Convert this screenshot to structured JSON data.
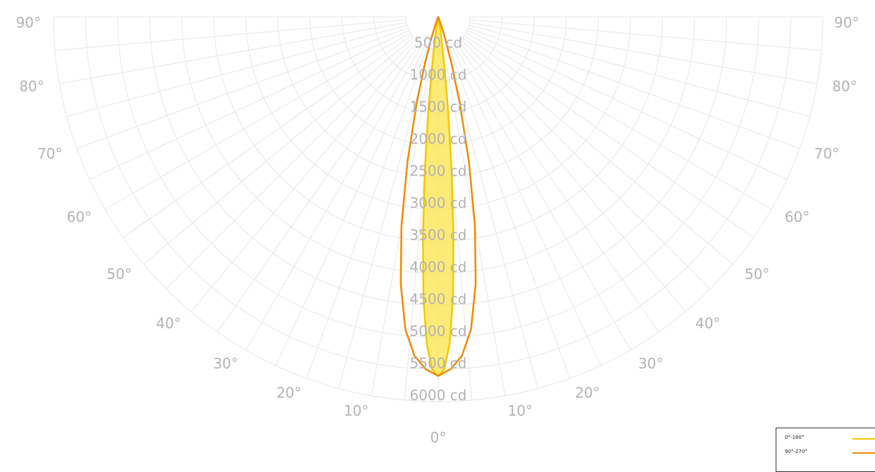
{
  "chart_data": {
    "type": "polar",
    "angle_unit": "deg",
    "radial_unit": "cd",
    "rmax": 6000,
    "rings": [
      500,
      1000,
      1500,
      2000,
      2500,
      3000,
      3500,
      4000,
      4500,
      5000,
      5500,
      6000
    ],
    "radial_tick_labels": [
      "500 cd",
      "1000 cd",
      "1500 cd",
      "2000 cd",
      "2500 cd",
      "3000 cd",
      "3500 cd",
      "4000 cd",
      "4500 cd",
      "5000 cd",
      "5500 cd",
      "6000 cd"
    ],
    "angle_ticks_left": [
      {
        "angle": 90,
        "label": "90°"
      },
      {
        "angle": 80,
        "label": "80°"
      },
      {
        "angle": 70,
        "label": "70°"
      },
      {
        "angle": 60,
        "label": "60°"
      },
      {
        "angle": 50,
        "label": "50°"
      },
      {
        "angle": 40,
        "label": "40°"
      },
      {
        "angle": 30,
        "label": "30°"
      },
      {
        "angle": 20,
        "label": "20°"
      },
      {
        "angle": 10,
        "label": "10°"
      }
    ],
    "angle_ticks_right": [
      {
        "angle": 90,
        "label": "90°"
      },
      {
        "angle": 80,
        "label": "80°"
      },
      {
        "angle": 70,
        "label": "70°"
      },
      {
        "angle": 60,
        "label": "60°"
      },
      {
        "angle": 50,
        "label": "50°"
      },
      {
        "angle": 40,
        "label": "40°"
      },
      {
        "angle": 30,
        "label": "30°"
      },
      {
        "angle": 20,
        "label": "20°"
      },
      {
        "angle": 10,
        "label": "10°"
      }
    ],
    "angle_tick_center": {
      "angle": 0,
      "label": "0°"
    },
    "grid": true,
    "legend_position": "bottom-right",
    "series": [
      {
        "name": "0°-180°",
        "color": "#f5c800",
        "fill": "#fbe44a",
        "points": [
          {
            "angle": 0,
            "value": 5600
          },
          {
            "angle": 1,
            "value": 5500
          },
          {
            "angle": 2,
            "value": 5100
          },
          {
            "angle": 3,
            "value": 4400
          },
          {
            "angle": 4,
            "value": 3400
          },
          {
            "angle": 5,
            "value": 2400
          },
          {
            "angle": 6,
            "value": 1500
          },
          {
            "angle": 7,
            "value": 850
          },
          {
            "angle": 8,
            "value": 420
          },
          {
            "angle": 9,
            "value": 180
          },
          {
            "angle": 10,
            "value": 60
          },
          {
            "angle": 12,
            "value": 0
          }
        ]
      },
      {
        "name": "90°-270°",
        "color": "#f08a00",
        "fill": "none",
        "points": [
          {
            "angle": 0,
            "value": 5600
          },
          {
            "angle": 2,
            "value": 5500
          },
          {
            "angle": 4,
            "value": 5300
          },
          {
            "angle": 6,
            "value": 4900
          },
          {
            "angle": 8,
            "value": 4200
          },
          {
            "angle": 10,
            "value": 3300
          },
          {
            "angle": 12,
            "value": 2300
          },
          {
            "angle": 14,
            "value": 1400
          },
          {
            "angle": 16,
            "value": 750
          },
          {
            "angle": 18,
            "value": 350
          },
          {
            "angle": 20,
            "value": 130
          },
          {
            "angle": 22,
            "value": 40
          },
          {
            "angle": 24,
            "value": 0
          }
        ]
      }
    ]
  }
}
